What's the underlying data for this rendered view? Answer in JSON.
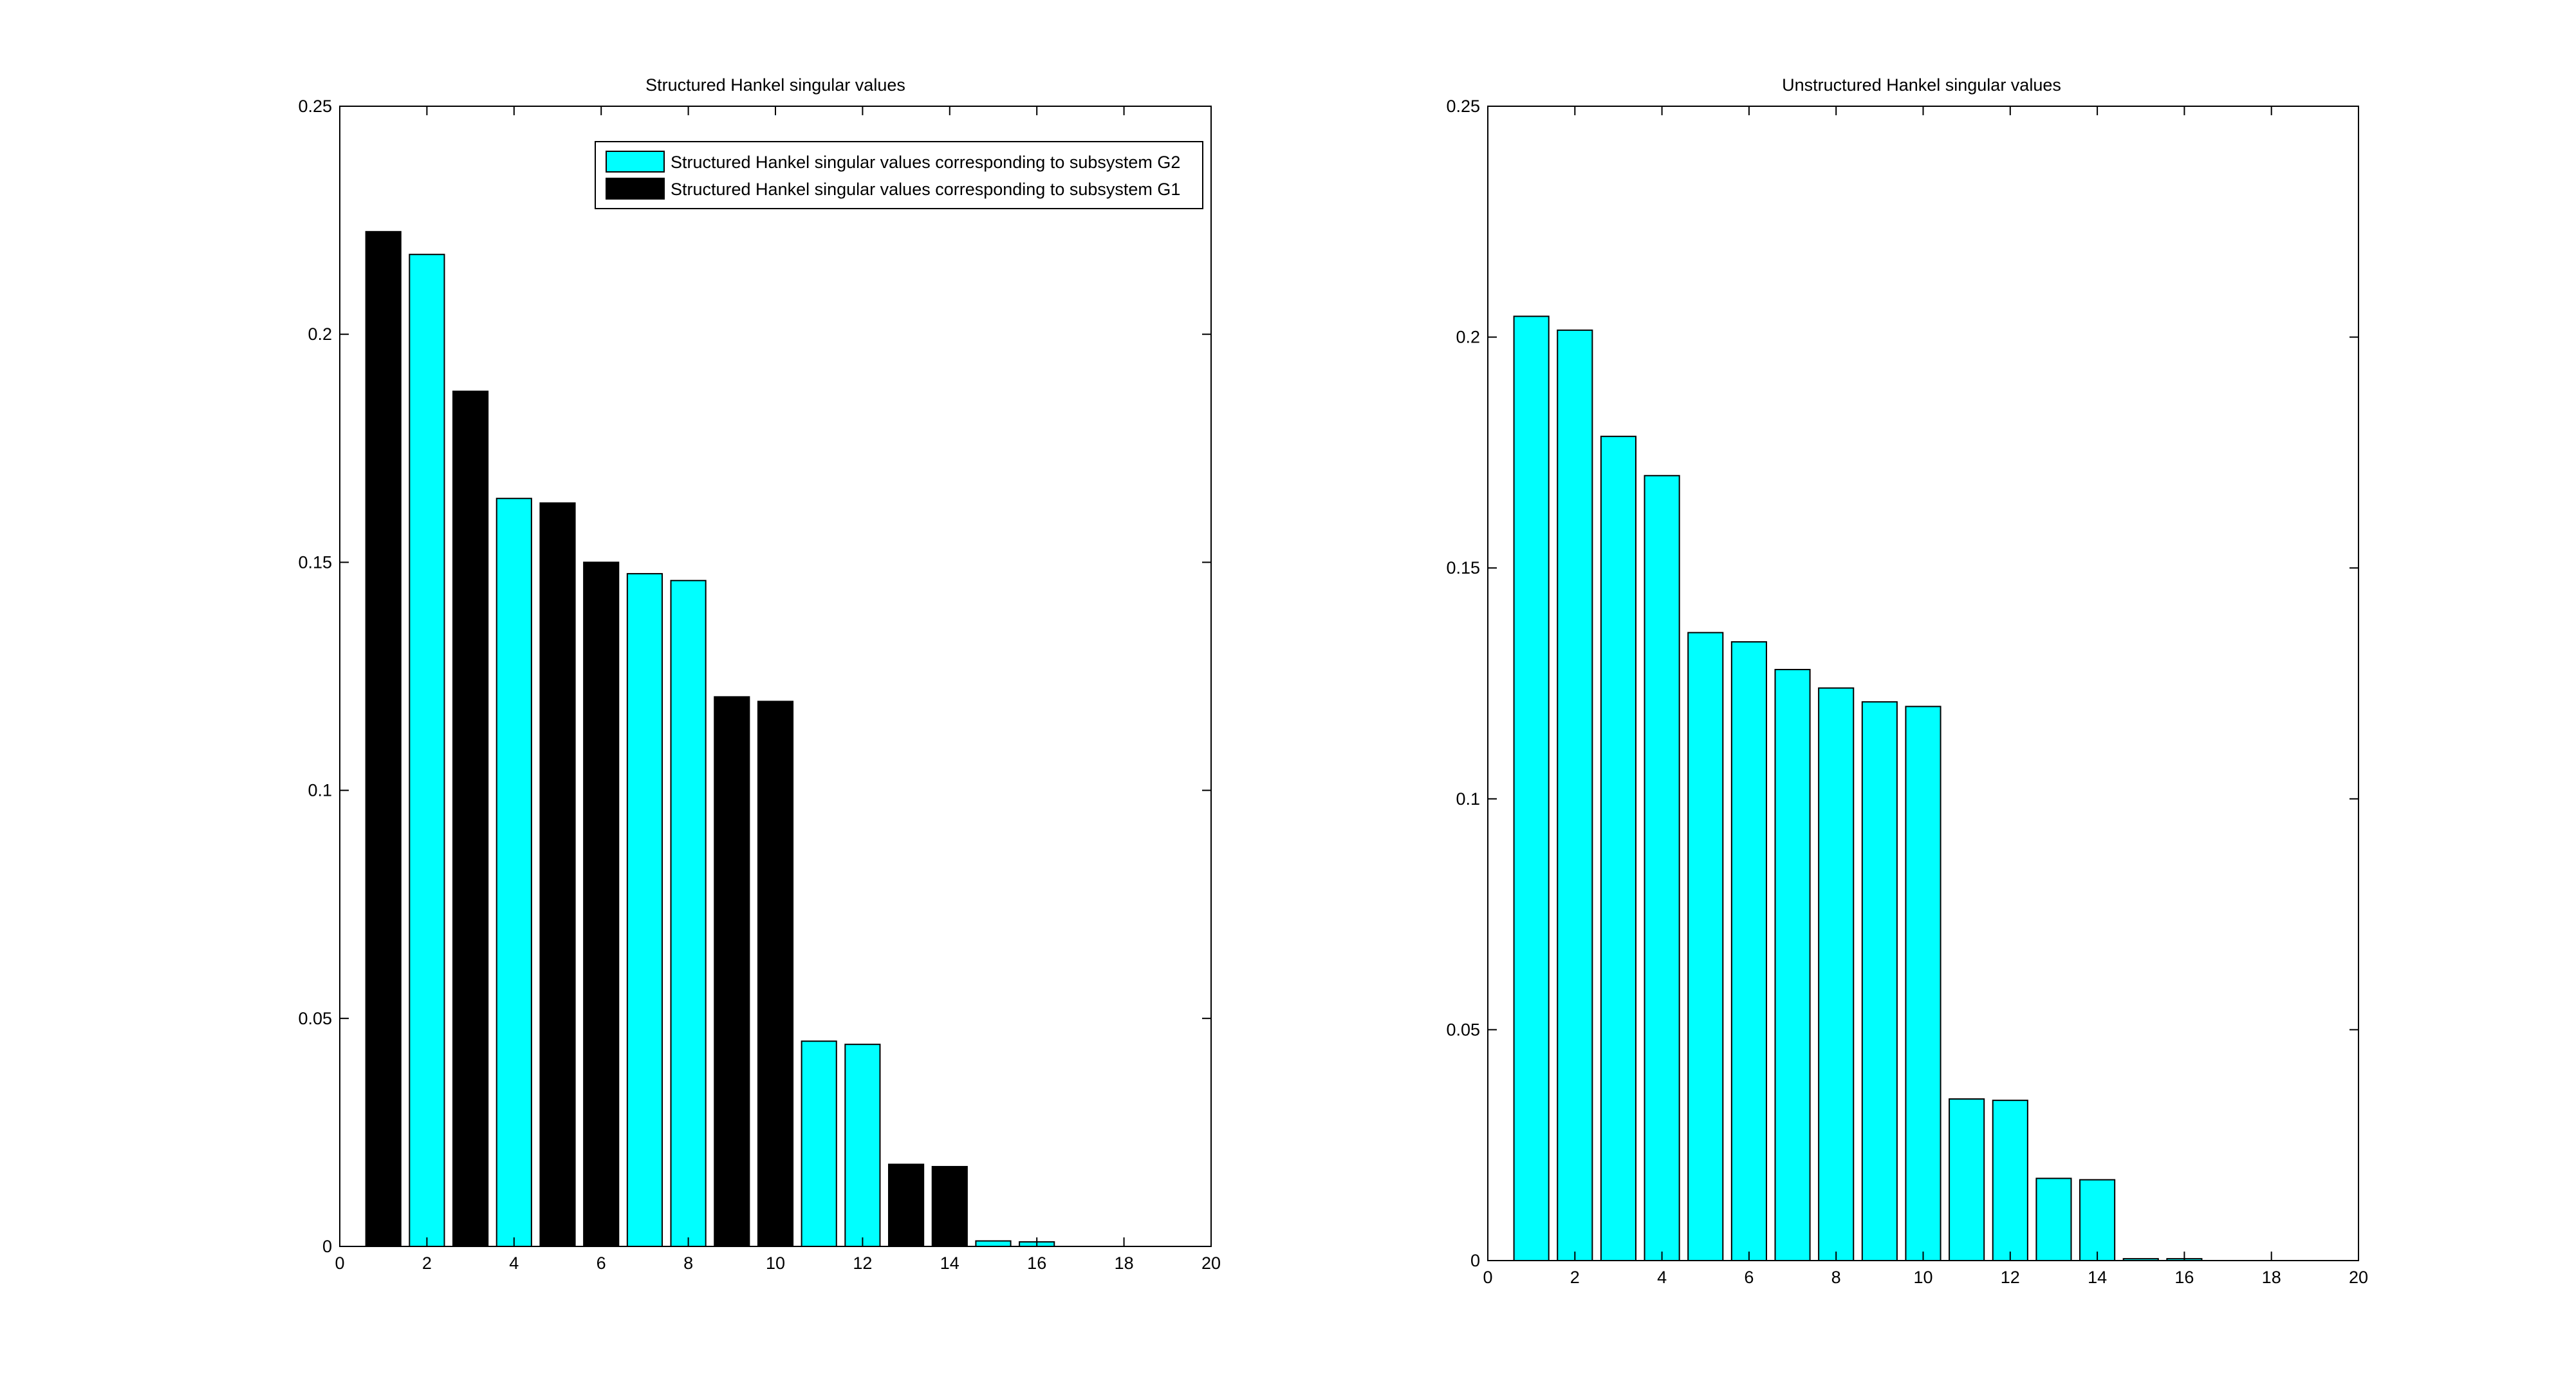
{
  "colors": {
    "g2": "#00ffff",
    "g1": "#000000"
  },
  "chart_data": [
    {
      "type": "bar",
      "title": "Structured Hankel singular values",
      "xlabel": "",
      "ylabel": "",
      "xlim": [
        0,
        20
      ],
      "ylim": [
        0,
        0.25
      ],
      "xticks": [
        0,
        2,
        4,
        6,
        8,
        10,
        12,
        14,
        16,
        18,
        20
      ],
      "yticks": [
        0,
        0.05,
        0.1,
        0.15,
        0.2,
        0.25
      ],
      "x": [
        1,
        2,
        3,
        4,
        5,
        6,
        7,
        8,
        9,
        10,
        11,
        12,
        13,
        14,
        15,
        16
      ],
      "values": [
        0.2225,
        0.2175,
        0.1875,
        0.164,
        0.163,
        0.15,
        0.1475,
        0.146,
        0.1205,
        0.1195,
        0.045,
        0.0443,
        0.018,
        0.0175,
        0.0012,
        0.001
      ],
      "groups": [
        "G1",
        "G2",
        "G1",
        "G2",
        "G1",
        "G1",
        "G2",
        "G2",
        "G1",
        "G1",
        "G2",
        "G2",
        "G1",
        "G1",
        "G2",
        "G2"
      ],
      "legend": {
        "placement": "top-right",
        "entries": [
          {
            "group": "G2",
            "label": "Structured Hankel singular values corresponding to subsystem G2"
          },
          {
            "group": "G1",
            "label": "Structured Hankel singular values corresponding to subsystem G1"
          }
        ]
      },
      "grid": false
    },
    {
      "type": "bar",
      "title": "Unstructured Hankel singular values",
      "xlabel": "",
      "ylabel": "",
      "xlim": [
        0,
        20
      ],
      "ylim": [
        0,
        0.25
      ],
      "xticks": [
        0,
        2,
        4,
        6,
        8,
        10,
        12,
        14,
        16,
        18,
        20
      ],
      "yticks": [
        0,
        0.05,
        0.1,
        0.15,
        0.2,
        0.25
      ],
      "x": [
        1,
        2,
        3,
        4,
        5,
        6,
        7,
        8,
        9,
        10,
        11,
        12,
        13,
        14,
        15,
        16
      ],
      "values": [
        0.2045,
        0.2015,
        0.1785,
        0.17,
        0.136,
        0.134,
        0.128,
        0.124,
        0.121,
        0.12,
        0.035,
        0.0347,
        0.0178,
        0.0175,
        0.0004,
        0.0004
      ],
      "groups": [
        "G2",
        "G2",
        "G2",
        "G2",
        "G2",
        "G2",
        "G2",
        "G2",
        "G2",
        "G2",
        "G2",
        "G2",
        "G2",
        "G2",
        "G2",
        "G2"
      ],
      "legend": null,
      "grid": false
    }
  ]
}
